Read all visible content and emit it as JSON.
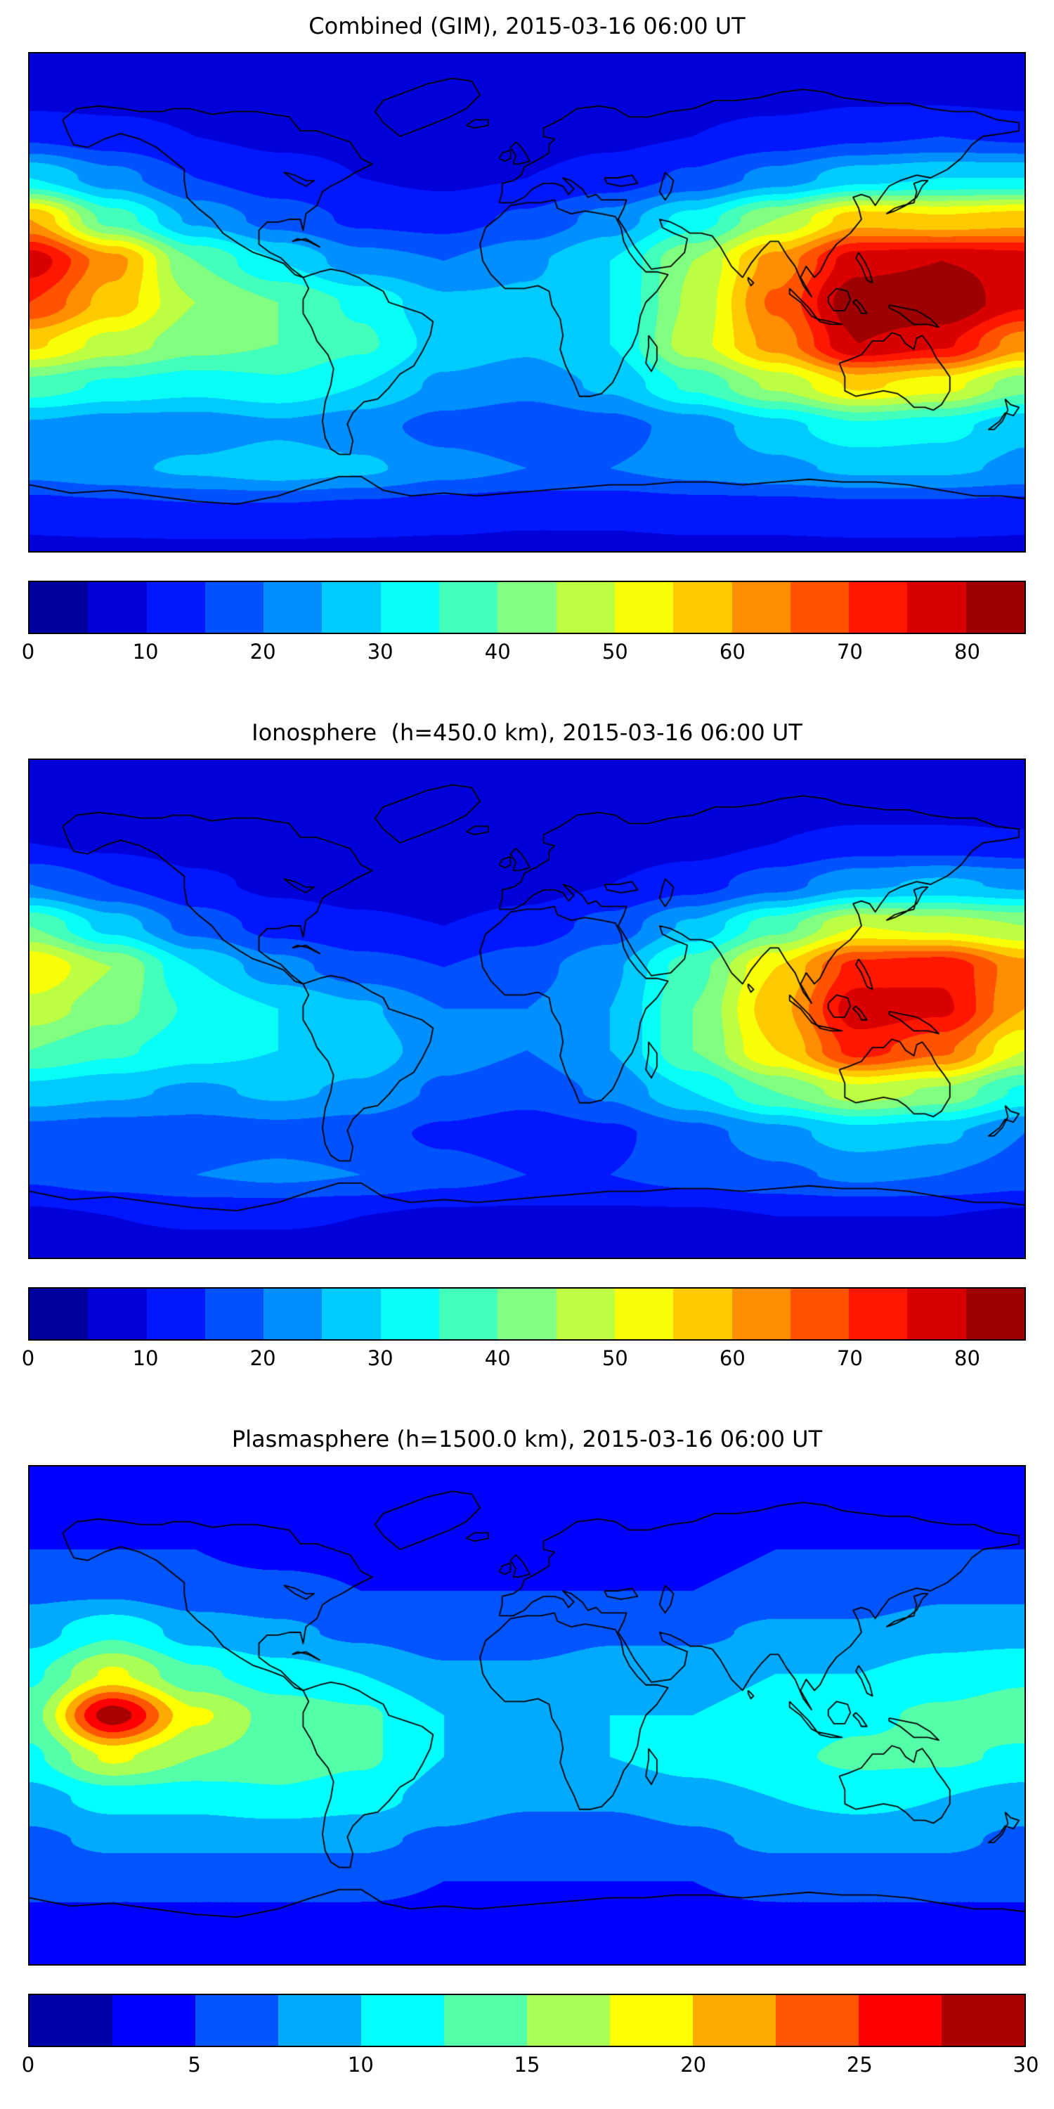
{
  "colors": {
    "background": "#ffffff",
    "coastline": "#000000",
    "text": "#000000",
    "colormap_low": "#00007f",
    "colormap_high": "#7f0000"
  },
  "chart_data": [
    {
      "type": "heatmap",
      "title": "Combined (GIM), 2015-03-16 06:00 UT",
      "colormap": "jet",
      "style": "filled-contour world map, equirectangular projection, lon -180..180, lat -90..90",
      "levels": {
        "min": 0,
        "max": 85,
        "step": 5
      },
      "colorbar_orientation": "horizontal",
      "colorbar_ticks": [
        0,
        10,
        20,
        30,
        40,
        50,
        60,
        70,
        80
      ],
      "grid": {
        "lons": [
          -180,
          -150,
          -120,
          -90,
          -60,
          -30,
          0,
          30,
          60,
          90,
          120,
          150,
          180
        ],
        "lats": [
          90,
          75,
          60,
          45,
          30,
          15,
          0,
          -15,
          -30,
          -45,
          -60,
          -75,
          -90
        ],
        "values": [
          [
            7,
            7,
            7,
            7,
            7,
            7,
            7,
            7,
            7,
            7,
            7,
            7,
            7
          ],
          [
            8,
            8,
            8,
            8,
            7,
            7,
            7,
            7,
            8,
            8,
            9,
            9,
            8
          ],
          [
            14,
            12,
            10,
            9,
            9,
            8,
            8,
            9,
            10,
            12,
            14,
            15,
            14
          ],
          [
            30,
            22,
            15,
            12,
            10,
            9,
            10,
            12,
            16,
            22,
            28,
            30,
            30
          ],
          [
            60,
            38,
            24,
            18,
            14,
            13,
            16,
            22,
            32,
            45,
            58,
            56,
            58
          ],
          [
            78,
            62,
            40,
            30,
            22,
            20,
            24,
            30,
            45,
            62,
            78,
            80,
            78
          ],
          [
            70,
            58,
            45,
            40,
            34,
            26,
            26,
            30,
            46,
            66,
            84,
            85,
            76
          ],
          [
            56,
            48,
            42,
            40,
            36,
            28,
            26,
            30,
            48,
            62,
            80,
            76,
            62
          ],
          [
            38,
            34,
            32,
            34,
            30,
            24,
            22,
            26,
            36,
            46,
            56,
            52,
            42
          ],
          [
            24,
            22,
            22,
            24,
            22,
            18,
            16,
            18,
            22,
            28,
            34,
            32,
            26
          ],
          [
            22,
            24,
            26,
            28,
            26,
            22,
            20,
            20,
            22,
            24,
            26,
            26,
            24
          ],
          [
            12,
            13,
            14,
            14,
            13,
            12,
            11,
            11,
            12,
            12,
            13,
            13,
            12
          ],
          [
            9,
            9,
            9,
            9,
            9,
            9,
            9,
            9,
            9,
            9,
            9,
            9,
            9
          ]
        ]
      }
    },
    {
      "type": "heatmap",
      "title": "Ionosphere  (h=450.0 km), 2015-03-16 06:00 UT",
      "colormap": "jet",
      "style": "filled-contour world map, equirectangular projection, lon -180..180, lat -90..90",
      "levels": {
        "min": 0,
        "max": 85,
        "step": 5
      },
      "colorbar_orientation": "horizontal",
      "colorbar_ticks": [
        0,
        10,
        20,
        30,
        40,
        50,
        60,
        70,
        80
      ],
      "grid": {
        "lons": [
          -180,
          -150,
          -120,
          -90,
          -60,
          -30,
          0,
          30,
          60,
          90,
          120,
          150,
          180
        ],
        "lats": [
          90,
          75,
          60,
          45,
          30,
          15,
          0,
          -15,
          -30,
          -45,
          -60,
          -75,
          -90
        ],
        "values": [
          [
            6,
            6,
            6,
            6,
            6,
            6,
            6,
            6,
            6,
            6,
            6,
            6,
            6
          ],
          [
            7,
            7,
            7,
            7,
            6,
            6,
            6,
            6,
            7,
            7,
            7,
            7,
            7
          ],
          [
            10,
            9,
            8,
            7,
            7,
            6,
            7,
            7,
            8,
            10,
            12,
            12,
            11
          ],
          [
            20,
            15,
            11,
            9,
            8,
            7,
            8,
            10,
            13,
            18,
            24,
            26,
            24
          ],
          [
            40,
            28,
            18,
            13,
            11,
            10,
            12,
            17,
            26,
            38,
            50,
            48,
            45
          ],
          [
            55,
            45,
            30,
            22,
            17,
            15,
            18,
            24,
            38,
            55,
            72,
            74,
            62
          ],
          [
            48,
            42,
            34,
            30,
            26,
            20,
            20,
            25,
            40,
            58,
            78,
            76,
            60
          ],
          [
            40,
            36,
            32,
            30,
            28,
            22,
            20,
            25,
            40,
            55,
            72,
            66,
            50
          ],
          [
            28,
            26,
            24,
            26,
            24,
            19,
            17,
            21,
            30,
            40,
            48,
            44,
            34
          ],
          [
            18,
            17,
            17,
            18,
            17,
            14,
            12,
            14,
            18,
            23,
            28,
            26,
            20
          ],
          [
            16,
            18,
            20,
            21,
            20,
            17,
            15,
            15,
            17,
            19,
            21,
            20,
            18
          ],
          [
            9,
            10,
            11,
            11,
            10,
            9,
            9,
            9,
            9,
            10,
            10,
            10,
            9
          ],
          [
            7,
            7,
            7,
            7,
            7,
            7,
            7,
            7,
            7,
            7,
            7,
            7,
            7
          ]
        ]
      }
    },
    {
      "type": "heatmap",
      "title": "Plasmasphere (h=1500.0 km), 2015-03-16 06:00 UT",
      "colormap": "jet",
      "style": "filled-contour world map, equirectangular projection, lon -180..180, lat -90..90",
      "levels": {
        "min": 0,
        "max": 30,
        "step": 2.5
      },
      "colorbar_orientation": "horizontal",
      "colorbar_ticks": [
        0,
        5,
        10,
        15,
        20,
        25,
        30
      ],
      "grid": {
        "lons": [
          -180,
          -150,
          -120,
          -90,
          -60,
          -30,
          0,
          30,
          60,
          90,
          120,
          150,
          180
        ],
        "lats": [
          90,
          75,
          60,
          45,
          30,
          15,
          0,
          -15,
          -30,
          -45,
          -60,
          -75,
          -90
        ],
        "values": [
          [
            3,
            3,
            3,
            3,
            3,
            3,
            3,
            3,
            3,
            3,
            3,
            3,
            3
          ],
          [
            4,
            4,
            4,
            4,
            4,
            3,
            3,
            3,
            4,
            4,
            4,
            4,
            4
          ],
          [
            5,
            5,
            5,
            4,
            4,
            4,
            4,
            4,
            4,
            5,
            5,
            5,
            5
          ],
          [
            7,
            7,
            6,
            6,
            5,
            5,
            5,
            5,
            5,
            6,
            6,
            7,
            7
          ],
          [
            9,
            12,
            9,
            8,
            7,
            6,
            6,
            7,
            7,
            8,
            8,
            9,
            9
          ],
          [
            12,
            18,
            13,
            11,
            10,
            8,
            8,
            9,
            9,
            10,
            10,
            11,
            12
          ],
          [
            14,
            29,
            18,
            14,
            13,
            10,
            9,
            10,
            10,
            11,
            12,
            13,
            14
          ],
          [
            12,
            18,
            15,
            14,
            13,
            10,
            9,
            10,
            11,
            12,
            13,
            13,
            12
          ],
          [
            9,
            11,
            11,
            12,
            11,
            9,
            8,
            8,
            9,
            10,
            11,
            10,
            9
          ],
          [
            7,
            8,
            8,
            8,
            8,
            7,
            6,
            6,
            7,
            8,
            8,
            8,
            7
          ],
          [
            6,
            6,
            6,
            6,
            6,
            5,
            5,
            5,
            5,
            6,
            6,
            6,
            6
          ],
          [
            4,
            4,
            4,
            4,
            4,
            4,
            4,
            4,
            4,
            4,
            4,
            4,
            4
          ],
          [
            3,
            3,
            3,
            3,
            3,
            3,
            3,
            3,
            3,
            3,
            3,
            3,
            3
          ]
        ]
      }
    }
  ]
}
